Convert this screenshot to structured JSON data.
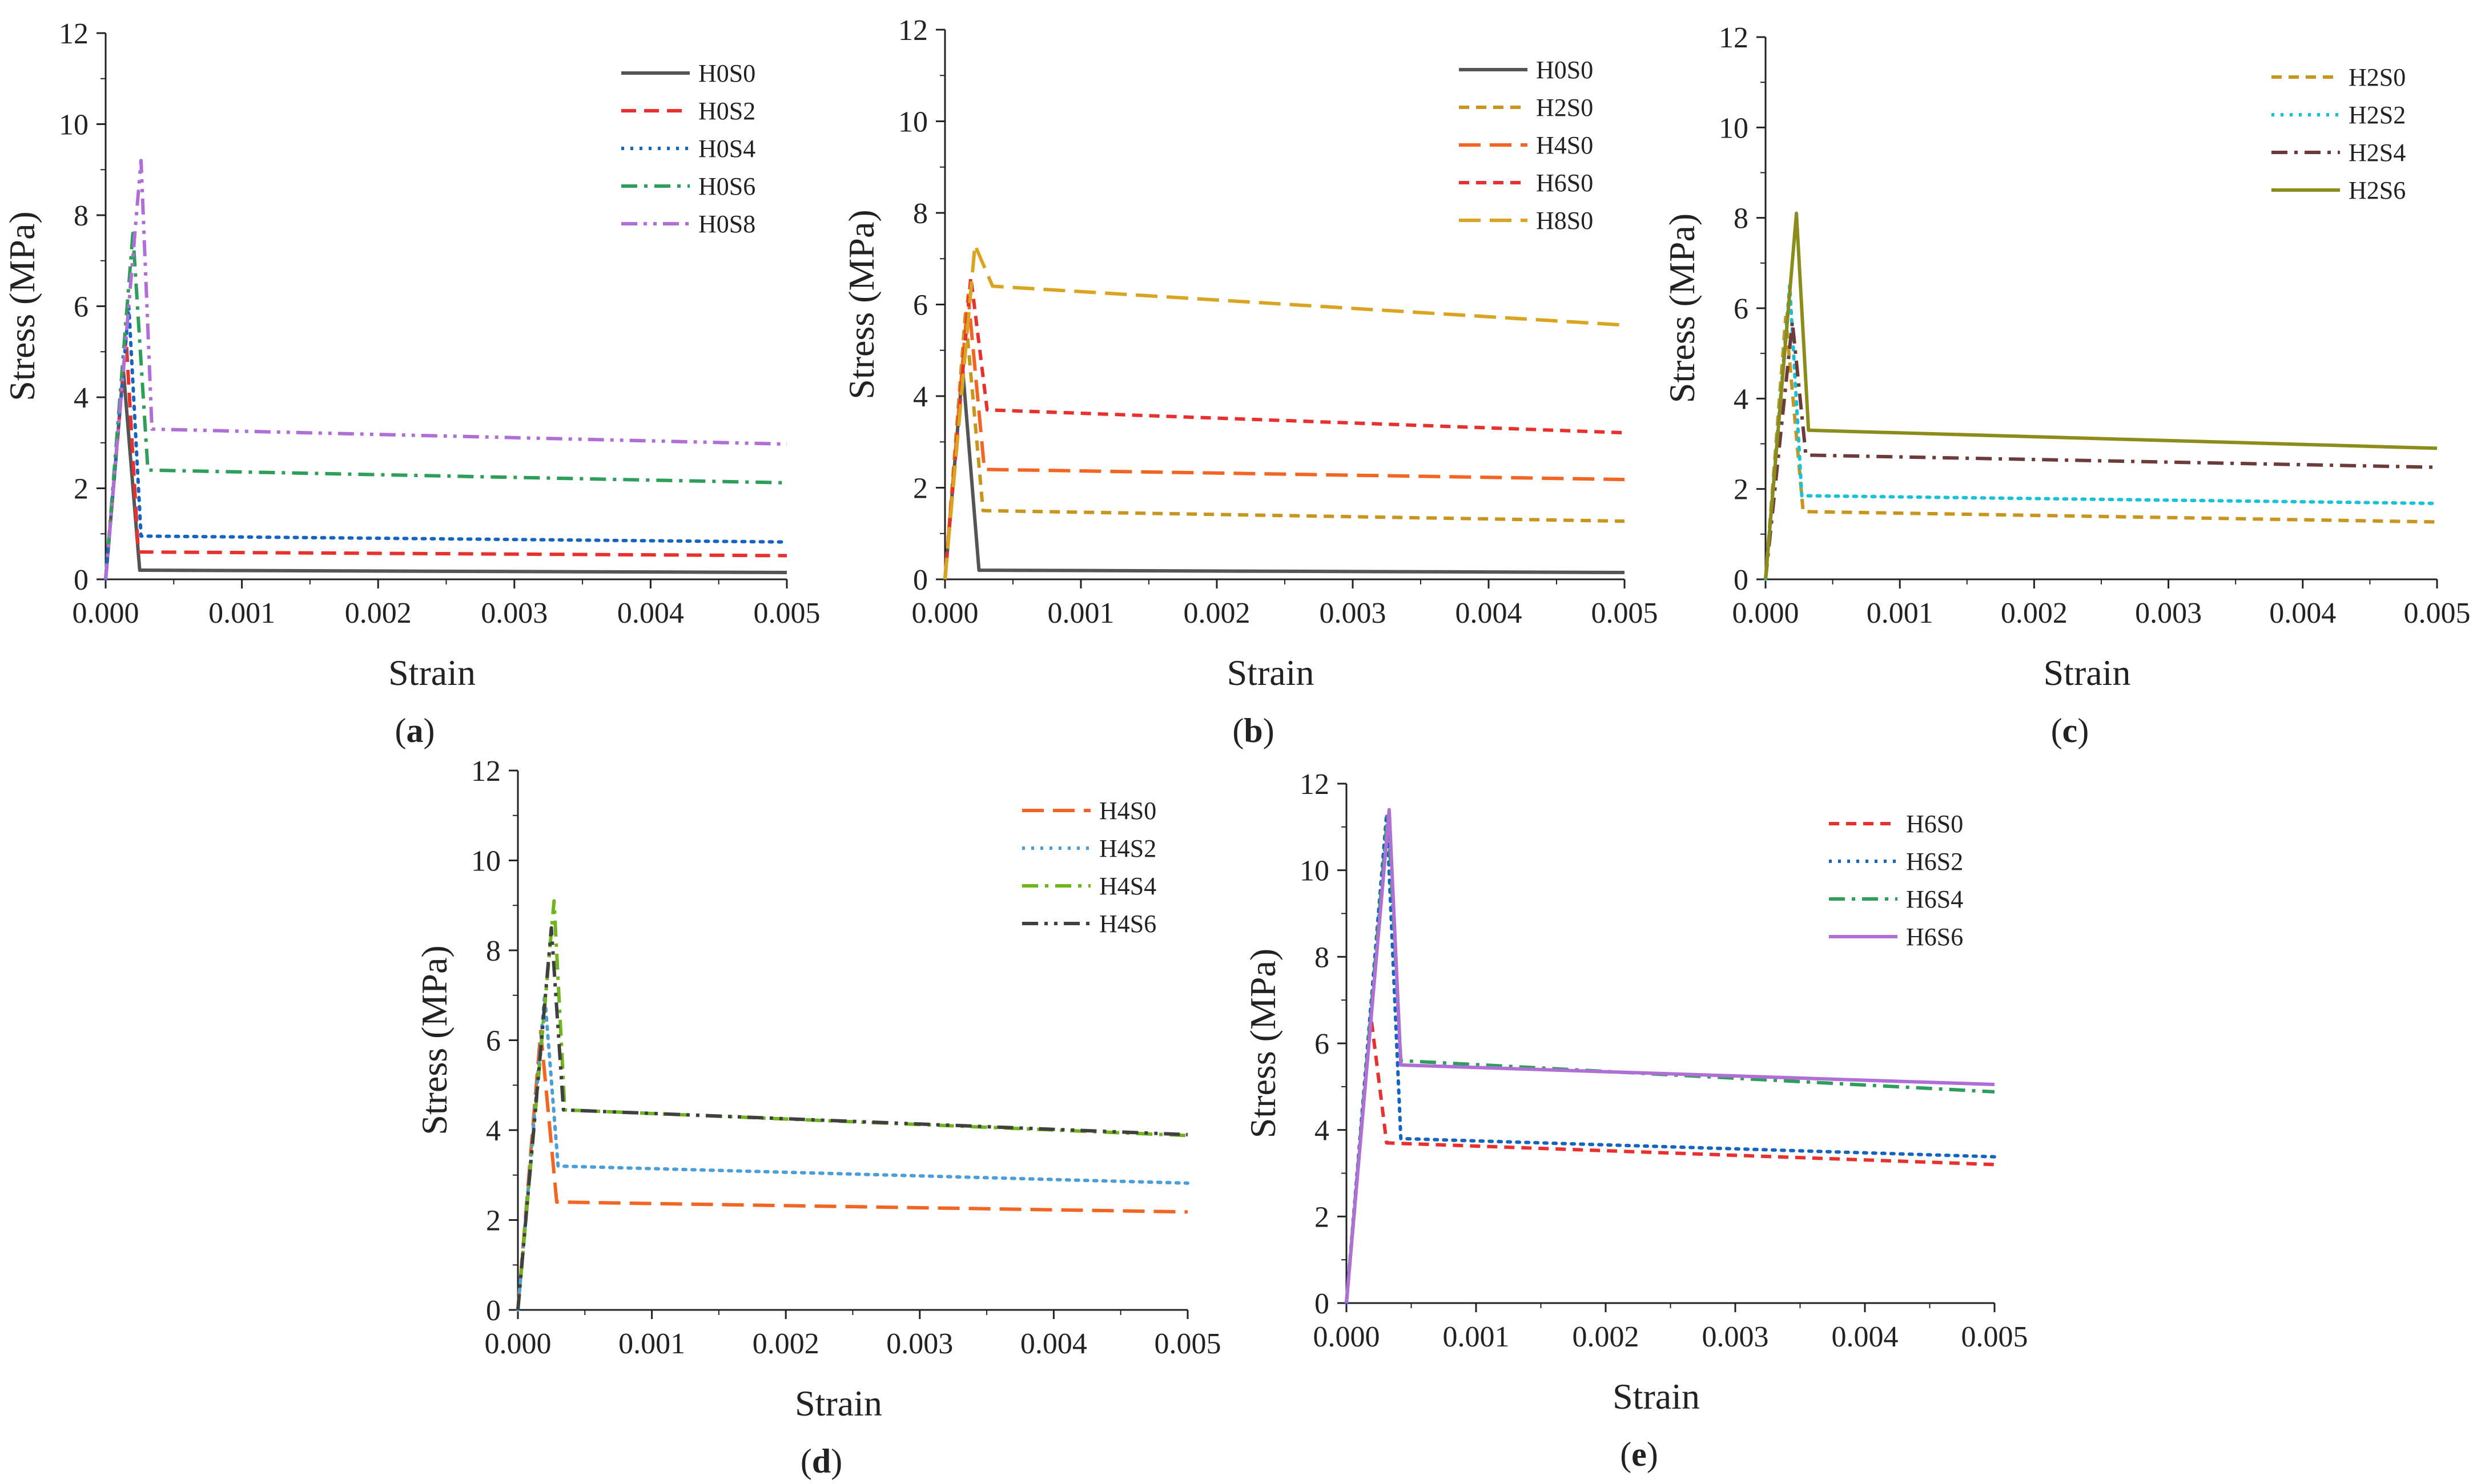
{
  "chart_data": [
    {
      "id": "a",
      "type": "line",
      "caption": "(a)",
      "caption_letter": "a",
      "xlabel": "Strain",
      "ylabel": "Stress  (MPa)",
      "xlim": [
        0,
        0.005
      ],
      "ylim": [
        0,
        12
      ],
      "xticks": [
        "0.000",
        "0.001",
        "0.002",
        "0.003",
        "0.004",
        "0.005"
      ],
      "yticks": [
        "0",
        "2",
        "4",
        "6",
        "8",
        "10",
        "12"
      ],
      "legend_position": "top-right",
      "series": [
        {
          "name": "H0S0",
          "color": "#555555",
          "dash": "solid",
          "points": [
            [
              0,
              0
            ],
            [
              0.00013,
              4.6
            ],
            [
              0.00025,
              0.2
            ],
            [
              0.005,
              0.15
            ]
          ]
        },
        {
          "name": "H0S2",
          "color": "#e8312f",
          "dash": "dash",
          "points": [
            [
              0,
              0
            ],
            [
              0.00015,
              5.3
            ],
            [
              0.00024,
              0.6
            ],
            [
              0.005,
              0.52
            ]
          ]
        },
        {
          "name": "H0S4",
          "color": "#1565c0",
          "dash": "dot",
          "points": [
            [
              0,
              0
            ],
            [
              0.00017,
              6.0
            ],
            [
              0.00026,
              0.95
            ],
            [
              0.005,
              0.82
            ]
          ]
        },
        {
          "name": "H0S6",
          "color": "#2e9e5b",
          "dash": "dashdot",
          "points": [
            [
              0,
              0
            ],
            [
              0.0002,
              7.6
            ],
            [
              0.00031,
              2.4
            ],
            [
              0.005,
              2.12
            ]
          ]
        },
        {
          "name": "H0S8",
          "color": "#b06fd6",
          "dash": "dashdotdot",
          "points": [
            [
              0,
              0
            ],
            [
              0.00026,
              9.2
            ],
            [
              0.00034,
              3.3
            ],
            [
              0.005,
              2.97
            ]
          ]
        }
      ]
    },
    {
      "id": "b",
      "type": "line",
      "caption": "(b)",
      "caption_letter": "b",
      "xlabel": "Strain",
      "ylabel": "Stress (MPa)",
      "xlim": [
        0,
        0.005
      ],
      "ylim": [
        0,
        12
      ],
      "xticks": [
        "0.000",
        "0.001",
        "0.002",
        "0.003",
        "0.004",
        "0.005"
      ],
      "yticks": [
        "0",
        "2",
        "4",
        "6",
        "8",
        "10",
        "12"
      ],
      "legend_position": "top-right",
      "series": [
        {
          "name": "H0S0",
          "color": "#555555",
          "dash": "solid",
          "points": [
            [
              0,
              0
            ],
            [
              0.00013,
              4.6
            ],
            [
              0.00025,
              0.2
            ],
            [
              0.005,
              0.15
            ]
          ]
        },
        {
          "name": "H2S0",
          "color": "#c8961e",
          "dash": "shortdash",
          "points": [
            [
              0,
              0
            ],
            [
              0.00015,
              5.8
            ],
            [
              0.00028,
              1.5
            ],
            [
              0.005,
              1.27
            ]
          ]
        },
        {
          "name": "H4S0",
          "color": "#f26522",
          "dash": "longdash",
          "points": [
            [
              0,
              0
            ],
            [
              0.00017,
              6.2
            ],
            [
              0.00029,
              2.4
            ],
            [
              0.005,
              2.18
            ]
          ]
        },
        {
          "name": "H6S0",
          "color": "#e8312f",
          "dash": "shortdash",
          "points": [
            [
              0,
              0
            ],
            [
              0.00019,
              6.6
            ],
            [
              0.00031,
              3.7
            ],
            [
              0.005,
              3.2
            ]
          ]
        },
        {
          "name": "H8S0",
          "color": "#d9a520",
          "dash": "longdash",
          "points": [
            [
              0,
              0
            ],
            [
              0.00022,
              7.3
            ],
            [
              0.00035,
              6.4
            ],
            [
              0.005,
              5.55
            ]
          ]
        }
      ]
    },
    {
      "id": "c",
      "type": "line",
      "caption": "(c)",
      "caption_letter": "c",
      "xlabel": "Strain",
      "ylabel": "Stress (MPa)",
      "xlim": [
        0,
        0.005
      ],
      "ylim": [
        0,
        12
      ],
      "xticks": [
        "0.000",
        "0.001",
        "0.002",
        "0.003",
        "0.004",
        "0.005"
      ],
      "yticks": [
        "0",
        "2",
        "4",
        "6",
        "8",
        "10",
        "12"
      ],
      "legend_position": "top-right",
      "series": [
        {
          "name": "H2S0",
          "color": "#c8961e",
          "dash": "shortdash",
          "points": [
            [
              0,
              0
            ],
            [
              0.00015,
              5.8
            ],
            [
              0.00028,
              1.5
            ],
            [
              0.005,
              1.27
            ]
          ]
        },
        {
          "name": "H2S2",
          "color": "#17c1d6",
          "dash": "dot",
          "points": [
            [
              0,
              0
            ],
            [
              0.00018,
              6.5
            ],
            [
              0.00027,
              1.85
            ],
            [
              0.005,
              1.68
            ]
          ]
        },
        {
          "name": "H2S4",
          "color": "#6e3b3b",
          "dash": "dashdot",
          "points": [
            [
              0,
              0
            ],
            [
              0.0002,
              5.7
            ],
            [
              0.0003,
              2.75
            ],
            [
              0.005,
              2.48
            ]
          ]
        },
        {
          "name": "H2S6",
          "color": "#8c8c1a",
          "dash": "solid",
          "points": [
            [
              0,
              0
            ],
            [
              0.00023,
              8.1
            ],
            [
              0.00032,
              3.3
            ],
            [
              0.005,
              2.9
            ]
          ]
        }
      ]
    },
    {
      "id": "d",
      "type": "line",
      "caption": "(d)",
      "caption_letter": "d",
      "xlabel": "Strain",
      "ylabel": "Stress (MPa)",
      "xlim": [
        0,
        0.005
      ],
      "ylim": [
        0,
        12
      ],
      "xticks": [
        "0.000",
        "0.001",
        "0.002",
        "0.003",
        "0.004",
        "0.005"
      ],
      "yticks": [
        "0",
        "2",
        "4",
        "6",
        "8",
        "10",
        "12"
      ],
      "legend_position": "top-right",
      "series": [
        {
          "name": "H4S0",
          "color": "#f26522",
          "dash": "longdash",
          "points": [
            [
              0,
              0
            ],
            [
              0.00017,
              6.2
            ],
            [
              0.00029,
              2.4
            ],
            [
              0.005,
              2.18
            ]
          ]
        },
        {
          "name": "H4S2",
          "color": "#4a9fd8",
          "dash": "dot",
          "points": [
            [
              0,
              0
            ],
            [
              0.0002,
              7.0
            ],
            [
              0.0003,
              3.2
            ],
            [
              0.005,
              2.82
            ]
          ]
        },
        {
          "name": "H4S4",
          "color": "#6fb51d",
          "dash": "dashdot",
          "points": [
            [
              0,
              0
            ],
            [
              0.00027,
              9.1
            ],
            [
              0.00035,
              4.45
            ],
            [
              0.005,
              3.88
            ]
          ]
        },
        {
          "name": "H4S6",
          "color": "#404040",
          "dash": "dashdotdot",
          "points": [
            [
              0,
              0
            ],
            [
              0.00025,
              8.5
            ],
            [
              0.00034,
              4.45
            ],
            [
              0.005,
              3.9
            ]
          ]
        }
      ]
    },
    {
      "id": "e",
      "type": "line",
      "caption": "(e)",
      "caption_letter": "e",
      "xlabel": "Strain",
      "ylabel": "Stress (MPa)",
      "xlim": [
        0,
        0.005
      ],
      "ylim": [
        0,
        12
      ],
      "xticks": [
        "0.000",
        "0.001",
        "0.002",
        "0.003",
        "0.004",
        "0.005"
      ],
      "yticks": [
        "0",
        "2",
        "4",
        "6",
        "8",
        "10",
        "12"
      ],
      "legend_position": "top-right",
      "series": [
        {
          "name": "H6S0",
          "color": "#e8312f",
          "dash": "shortdash",
          "points": [
            [
              0,
              0
            ],
            [
              0.00019,
              6.6
            ],
            [
              0.00031,
              3.7
            ],
            [
              0.005,
              3.2
            ]
          ]
        },
        {
          "name": "H6S2",
          "color": "#1565c0",
          "dash": "dot",
          "points": [
            [
              0,
              0
            ],
            [
              0.00031,
              11.3
            ],
            [
              0.00042,
              3.8
            ],
            [
              0.005,
              3.38
            ]
          ]
        },
        {
          "name": "H6S4",
          "color": "#2e9e5b",
          "dash": "dashdot",
          "points": [
            [
              0,
              0
            ],
            [
              0.00032,
              11.35
            ],
            [
              0.00042,
              5.6
            ],
            [
              0.005,
              4.88
            ]
          ]
        },
        {
          "name": "H6S6",
          "color": "#b06fd6",
          "dash": "solid",
          "points": [
            [
              0,
              0
            ],
            [
              0.00033,
              11.4
            ],
            [
              0.00042,
              5.5
            ],
            [
              0.005,
              5.05
            ]
          ]
        }
      ]
    }
  ]
}
